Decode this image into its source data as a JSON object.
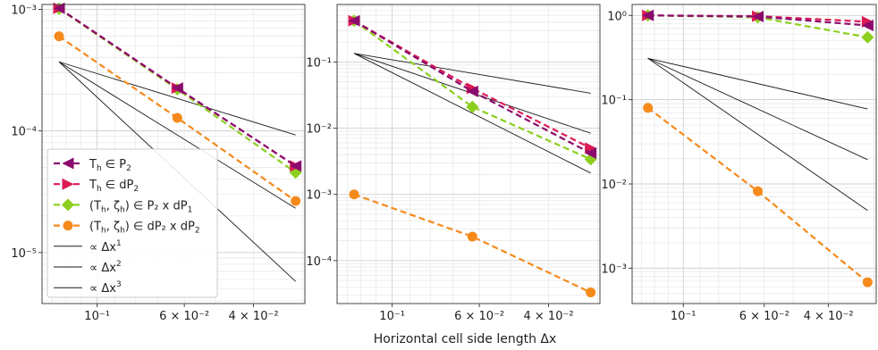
{
  "figure": {
    "xlabel": "Horizontal cell side length Δx",
    "xscale": "log",
    "yscale": "log",
    "xaxis_inverted": true,
    "grid": true,
    "colors": {
      "Th_P2": "#8b0a6e",
      "Th_dP2": "#dc1a55",
      "Th_zeta_P2_dP1": "#8ccf1e",
      "Th_zeta_dP2_dP2": "#f58a1b",
      "reference": "#1a1a1a"
    },
    "legend": {
      "location": "lower-left of first panel",
      "entries": [
        {
          "key": "Th_P2",
          "prefix": "T",
          "sub": "h",
          "rest": " ∈ P",
          "rest_sub": "2",
          "tail": "",
          "tail_sub": ""
        },
        {
          "key": "Th_dP2",
          "prefix": "T",
          "sub": "h",
          "rest": " ∈ dP",
          "rest_sub": "2",
          "tail": "",
          "tail_sub": ""
        },
        {
          "key": "Th_zeta_P2_dP1",
          "prefix": "(T",
          "sub": "h",
          "rest": ", ζ",
          "rest_sub": "h",
          "tail": ") ∈  P₂ x dP",
          "tail_sub": "1"
        },
        {
          "key": "Th_zeta_dP2_dP2",
          "prefix": "(T",
          "sub": "h",
          "rest": ", ζ",
          "rest_sub": "h",
          "tail": ") ∈  dP₂ x dP",
          "tail_sub": "2"
        },
        {
          "key": "ref1",
          "label": "∝  Δx",
          "sup": "1"
        },
        {
          "key": "ref2",
          "label": "∝  Δx",
          "sup": "2"
        },
        {
          "key": "ref3",
          "label": "∝  Δx",
          "sup": "3"
        }
      ]
    }
  },
  "chart_data": [
    {
      "type": "line",
      "panel": 1,
      "x": [
        0.125,
        0.0625,
        0.03125
      ],
      "xlim": [
        0.1381,
        0.0296
      ],
      "ylim_log10": [
        -5.42,
        -2.96
      ],
      "x_tick_labels": [
        "10⁻¹",
        "6 × 10⁻²",
        "4 × 10⁻²"
      ],
      "x_ticks": [
        0.1,
        0.06,
        0.04
      ],
      "y_ticks": [
        1e-05,
        0.0001,
        0.001
      ],
      "y_tick_labels": [
        "10⁻⁵",
        "10⁻⁴",
        "10⁻³"
      ],
      "series": [
        {
          "key": "Th_P2",
          "marker": "triangle-left",
          "values": [
            0.00102,
            0.000225,
            5.15e-05
          ]
        },
        {
          "key": "Th_dP2",
          "marker": "triangle-right",
          "values": [
            0.00102,
            0.000225,
            5.15e-05
          ]
        },
        {
          "key": "Th_zeta_P2_dP1",
          "marker": "diamond",
          "values": [
            0.00101,
            0.00022,
            4.55e-05
          ]
        },
        {
          "key": "Th_zeta_dP2_dP2",
          "marker": "circle",
          "values": [
            0.0006,
            0.000128,
            2.65e-05
          ]
        }
      ],
      "references": [
        {
          "key": "ref1",
          "order": 1,
          "values": [
            0.00037,
            9.25e-05
          ]
        },
        {
          "key": "ref2",
          "order": 2,
          "values": [
            0.00037,
            2.31e-05
          ]
        },
        {
          "key": "ref3",
          "order": 3,
          "values": [
            0.00037,
            5.78e-06
          ]
        }
      ]
    },
    {
      "type": "line",
      "panel": 2,
      "x": [
        0.125,
        0.0625,
        0.03125
      ],
      "xlim": [
        0.1381,
        0.0296
      ],
      "ylim_log10": [
        -4.65,
        -0.13
      ],
      "x_tick_labels": [
        "10⁻¹",
        "6 × 10⁻²",
        "4 × 10⁻²"
      ],
      "x_ticks": [
        0.1,
        0.06,
        0.04
      ],
      "y_ticks": [
        0.0001,
        0.001,
        0.01,
        0.1
      ],
      "y_tick_labels": [
        "10⁻⁴",
        "10⁻³",
        "10⁻²",
        "10⁻¹"
      ],
      "series": [
        {
          "key": "Th_P2",
          "marker": "triangle-left",
          "values": [
            0.42,
            0.036,
            0.0042
          ]
        },
        {
          "key": "Th_dP2",
          "marker": "triangle-right",
          "values": [
            0.42,
            0.04,
            0.005
          ]
        },
        {
          "key": "Th_zeta_P2_dP1",
          "marker": "diamond",
          "values": [
            0.42,
            0.021,
            0.0034
          ]
        },
        {
          "key": "Th_zeta_dP2_dP2",
          "marker": "circle",
          "values": [
            0.001,
            0.00023,
            3.3e-05
          ]
        }
      ],
      "references": [
        {
          "key": "ref1",
          "order": 1,
          "values": [
            0.135,
            0.0338
          ]
        },
        {
          "key": "ref2",
          "order": 2,
          "values": [
            0.135,
            0.0084
          ]
        },
        {
          "key": "ref3",
          "order": 3,
          "values": [
            0.135,
            0.0021
          ]
        }
      ]
    },
    {
      "type": "line",
      "panel": 3,
      "x": [
        0.125,
        0.0625,
        0.03125
      ],
      "xlim": [
        0.1381,
        0.0296
      ],
      "ylim_log10": [
        -3.42,
        0.13
      ],
      "x_tick_labels": [
        "10⁻¹",
        "6 × 10⁻²",
        "4 × 10⁻²"
      ],
      "x_ticks": [
        0.1,
        0.06,
        0.04
      ],
      "y_ticks": [
        0.001,
        0.01,
        0.1,
        1
      ],
      "y_tick_labels": [
        "10⁻³",
        "10⁻²",
        "10⁻¹",
        "10⁰"
      ],
      "series": [
        {
          "key": "Th_P2",
          "marker": "triangle-left",
          "values": [
            1.0,
            0.97,
            0.76
          ]
        },
        {
          "key": "Th_dP2",
          "marker": "triangle-right",
          "values": [
            1.0,
            0.98,
            0.84
          ]
        },
        {
          "key": "Th_zeta_P2_dP1",
          "marker": "diamond",
          "values": [
            1.0,
            0.95,
            0.55
          ]
        },
        {
          "key": "Th_zeta_dP2_dP2",
          "marker": "circle",
          "values": [
            0.08,
            0.0082,
            0.00068
          ]
        }
      ],
      "references": [
        {
          "key": "ref1",
          "order": 1,
          "values": [
            0.31,
            0.0775
          ]
        },
        {
          "key": "ref2",
          "order": 2,
          "values": [
            0.31,
            0.0194
          ]
        },
        {
          "key": "ref3",
          "order": 3,
          "values": [
            0.31,
            0.00484
          ]
        }
      ]
    }
  ]
}
